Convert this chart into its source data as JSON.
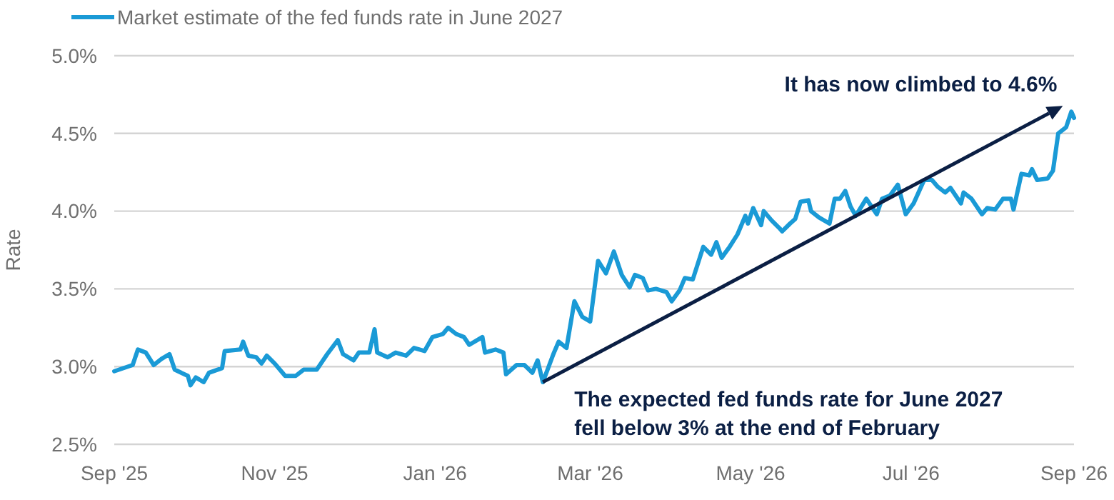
{
  "chart_data": {
    "type": "line",
    "ylabel": "Rate",
    "legend": "top left",
    "grid": "y",
    "marker": "none",
    "line_style": "solid",
    "xlim": [
      "2025-09-01",
      "2026-09-01"
    ],
    "xticks": [
      {
        "value": "2025-09-01",
        "label": "Sep '25"
      },
      {
        "value": "2025-11-01",
        "label": "Nov '25"
      },
      {
        "value": "2026-01-01",
        "label": "Jan '26"
      },
      {
        "value": "2026-03-01",
        "label": "Mar '26"
      },
      {
        "value": "2026-05-01",
        "label": "May '26"
      },
      {
        "value": "2026-07-01",
        "label": "Jul '26"
      },
      {
        "value": "2026-09-01",
        "label": "Sep '26"
      }
    ],
    "ylim": [
      2.5,
      5.0
    ],
    "yticks": [
      {
        "value": 2.5,
        "label": "2.5%"
      },
      {
        "value": 3.0,
        "label": "3.0%"
      },
      {
        "value": 3.5,
        "label": "3.5%"
      },
      {
        "value": 4.0,
        "label": "4.0%"
      },
      {
        "value": 4.5,
        "label": "4.5%"
      },
      {
        "value": 5.0,
        "label": "5.0%"
      }
    ],
    "annotations": [
      {
        "text": "The expected fed funds rate for June 2027\nfell below 3% at the end of February",
        "x": "2026-02-11",
        "y": 2.9
      },
      {
        "text": "It has now climbed to 4.6%",
        "x": "2026-08-31",
        "y": 4.64
      }
    ],
    "x": [
      "2025-09-01",
      "2025-09-08",
      "2025-09-10",
      "2025-09-13",
      "2025-09-16",
      "2025-09-19",
      "2025-09-22",
      "2025-09-24",
      "2025-09-29",
      "2025-09-30",
      "2025-10-02",
      "2025-10-05",
      "2025-10-07",
      "2025-10-12",
      "2025-10-13",
      "2025-10-19",
      "2025-10-20",
      "2025-10-22",
      "2025-10-25",
      "2025-10-27",
      "2025-10-29",
      "2025-11-01",
      "2025-11-05",
      "2025-11-09",
      "2025-11-12",
      "2025-11-17",
      "2025-11-21",
      "2025-11-25",
      "2025-11-27",
      "2025-12-01",
      "2025-12-03",
      "2025-12-07",
      "2025-12-09",
      "2025-12-10",
      "2025-12-14",
      "2025-12-17",
      "2025-12-21",
      "2025-12-24",
      "2025-12-28",
      "2025-12-31",
      "2026-01-04",
      "2026-01-06",
      "2026-01-09",
      "2026-01-12",
      "2026-01-14",
      "2026-01-19",
      "2026-01-20",
      "2026-01-24",
      "2026-01-27",
      "2026-01-28",
      "2026-02-01",
      "2026-02-04",
      "2026-02-07",
      "2026-02-09",
      "2026-02-11",
      "2026-02-15",
      "2026-02-17",
      "2026-02-20",
      "2026-02-23",
      "2026-02-26",
      "2026-03-01",
      "2026-03-04",
      "2026-03-07",
      "2026-03-10",
      "2026-03-13",
      "2026-03-16",
      "2026-03-18",
      "2026-03-21",
      "2026-03-23",
      "2026-03-26",
      "2026-03-30",
      "2026-04-01",
      "2026-04-04",
      "2026-04-06",
      "2026-04-09",
      "2026-04-13",
      "2026-04-16",
      "2026-04-18",
      "2026-04-20",
      "2026-04-23",
      "2026-04-26",
      "2026-04-29",
      "2026-04-30",
      "2026-05-02",
      "2026-05-05",
      "2026-05-06",
      "2026-05-09",
      "2026-05-12",
      "2026-05-13",
      "2026-05-16",
      "2026-05-18",
      "2026-05-20",
      "2026-05-23",
      "2026-05-24",
      "2026-05-27",
      "2026-05-31",
      "2026-06-02",
      "2026-06-04",
      "2026-06-06",
      "2026-06-08",
      "2026-06-10",
      "2026-06-14",
      "2026-06-18",
      "2026-06-20",
      "2026-06-23",
      "2026-06-26",
      "2026-06-29",
      "2026-07-02",
      "2026-07-06",
      "2026-07-09",
      "2026-07-11",
      "2026-07-14",
      "2026-07-16",
      "2026-07-20",
      "2026-07-21",
      "2026-07-24",
      "2026-07-28",
      "2026-07-30",
      "2026-08-02",
      "2026-08-05",
      "2026-08-08",
      "2026-08-09",
      "2026-08-12",
      "2026-08-15",
      "2026-08-16",
      "2026-08-18",
      "2026-08-22",
      "2026-08-24",
      "2026-08-26",
      "2026-08-29",
      "2026-08-31",
      "2026-09-01"
    ],
    "series": [
      {
        "name": "Market estimate of the fed funds rate in June 2027",
        "color": "#1a9ad6",
        "values": [
          2.97,
          3.01,
          3.11,
          3.09,
          3.01,
          3.05,
          3.08,
          2.98,
          2.94,
          2.88,
          2.93,
          2.9,
          2.96,
          2.99,
          3.1,
          3.11,
          3.16,
          3.07,
          3.06,
          3.02,
          3.07,
          3.02,
          2.94,
          2.94,
          2.98,
          2.98,
          3.08,
          3.17,
          3.08,
          3.04,
          3.09,
          3.09,
          3.24,
          3.09,
          3.06,
          3.09,
          3.07,
          3.12,
          3.1,
          3.19,
          3.21,
          3.25,
          3.21,
          3.19,
          3.14,
          3.19,
          3.09,
          3.11,
          3.09,
          2.95,
          3.01,
          3.01,
          2.96,
          3.04,
          2.9,
          3.08,
          3.16,
          3.12,
          3.42,
          3.32,
          3.29,
          3.68,
          3.6,
          3.74,
          3.59,
          3.51,
          3.59,
          3.57,
          3.49,
          3.5,
          3.48,
          3.42,
          3.49,
          3.57,
          3.56,
          3.77,
          3.72,
          3.8,
          3.7,
          3.77,
          3.85,
          3.97,
          3.92,
          4.02,
          3.91,
          4.0,
          3.94,
          3.89,
          3.87,
          3.92,
          3.95,
          4.06,
          4.07,
          4.0,
          3.96,
          3.92,
          4.08,
          4.08,
          4.13,
          4.03,
          3.97,
          4.08,
          3.98,
          4.08,
          4.1,
          4.17,
          3.98,
          4.05,
          4.2,
          4.2,
          4.16,
          4.12,
          4.15,
          4.05,
          4.12,
          4.08,
          3.98,
          4.02,
          4.01,
          4.08,
          4.08,
          4.01,
          4.24,
          4.23,
          4.27,
          4.2,
          4.21,
          4.26,
          4.5,
          4.54,
          4.64,
          4.6
        ]
      }
    ]
  }
}
